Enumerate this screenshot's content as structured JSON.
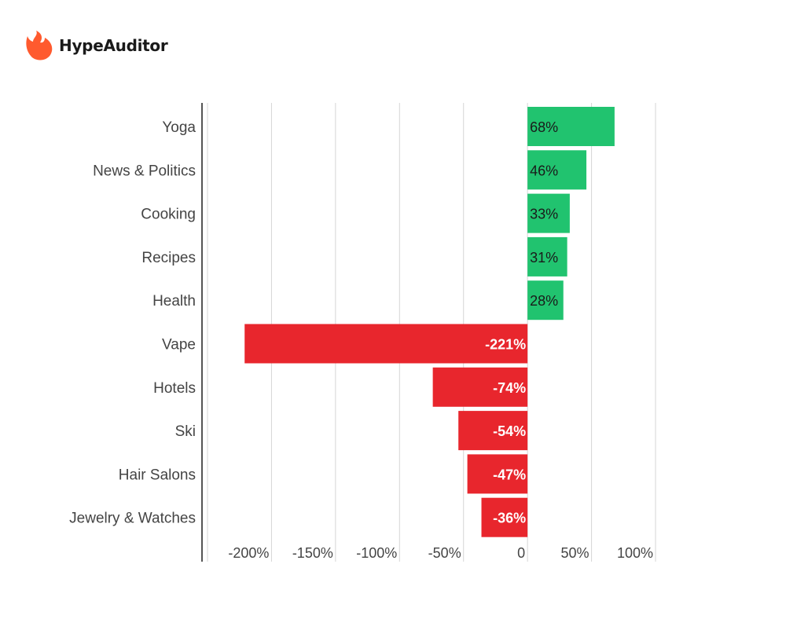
{
  "brand": {
    "name": "HypeAuditor",
    "icon": "flame-icon",
    "icon_color": "#FF5A2E"
  },
  "colors": {
    "positive": "#21C36F",
    "negative": "#E8262D",
    "grid": "#D5D5D5",
    "axis": "#555555",
    "text": "#444444"
  },
  "chart_data": {
    "type": "bar",
    "orientation": "horizontal",
    "categories": [
      "Yoga",
      "News & Politics",
      "Cooking",
      "Recipes",
      "Health",
      "Vape",
      "Hotels",
      "Ski",
      "Hair Salons",
      "Jewelry & Watches"
    ],
    "values": [
      68,
      46,
      33,
      31,
      28,
      -221,
      -74,
      -54,
      -47,
      -36
    ],
    "data_labels": [
      "68%",
      "46%",
      "33%",
      "31%",
      "28%",
      "-221%",
      "-74%",
      "-54%",
      "-47%",
      "-36%"
    ],
    "x_ticks": [
      -250,
      -200,
      -150,
      -100,
      -50,
      0,
      50,
      100
    ],
    "x_tick_labels": [
      "",
      "-200%",
      "-150%",
      "-100%",
      "-50%",
      "0",
      "50%",
      "100%"
    ],
    "xlim": [
      -250,
      100
    ],
    "grid": true,
    "legend": "none",
    "xlabel": "",
    "ylabel": ""
  }
}
